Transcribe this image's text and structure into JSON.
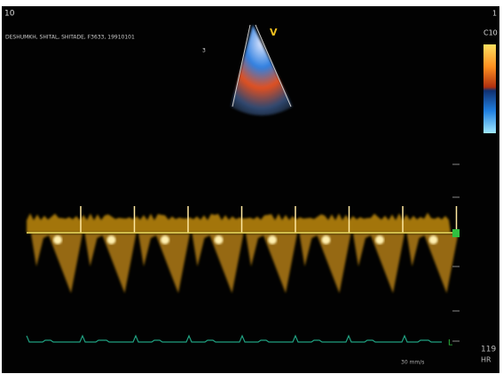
{
  "screen": {
    "corner_left": "10",
    "corner_right": "1",
    "patient_line": "DESHUMKH, SHITAL, SHITADE, F3633, 19910101",
    "marker": "3",
    "probe_label": "V",
    "color_map_label": "C10",
    "heart_rate": "119",
    "heart_rate_unit": "HR",
    "sweep_speed": "30 mm/s",
    "ecg_lead": "L"
  }
}
